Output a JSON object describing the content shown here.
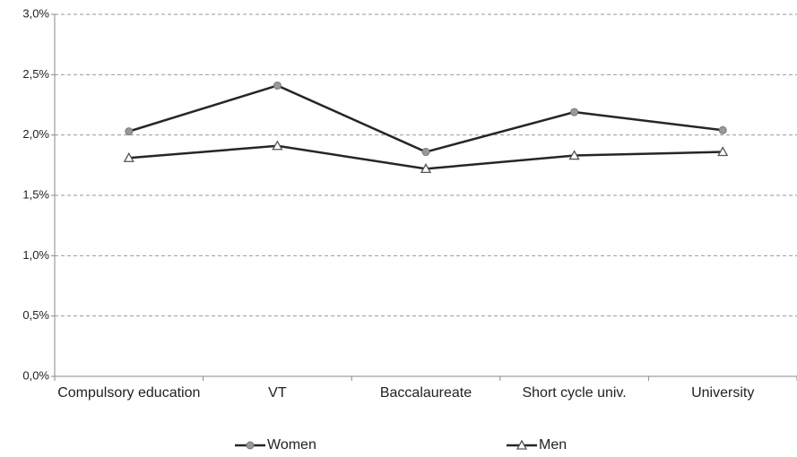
{
  "chart_data": {
    "type": "line",
    "categories": [
      "Compulsory education",
      "VT",
      "Baccalaureate",
      "Short cycle univ.",
      "University"
    ],
    "series": [
      {
        "name": "Women",
        "color": "#262626",
        "marker": "circle",
        "values": [
          2.03,
          2.41,
          1.86,
          2.19,
          2.04
        ]
      },
      {
        "name": "Men",
        "color": "#262626",
        "marker": "triangle",
        "values": [
          1.81,
          1.91,
          1.72,
          1.83,
          1.86
        ]
      }
    ],
    "ylim": [
      0,
      3
    ],
    "yticks": [
      {
        "value": 0,
        "label": "0,0%"
      },
      {
        "value": 0.5,
        "label": "0,5%"
      },
      {
        "value": 1,
        "label": "1,0%"
      },
      {
        "value": 1.5,
        "label": "1,5%"
      },
      {
        "value": 2,
        "label": "2,0%"
      },
      {
        "value": 2.5,
        "label": "2,5%"
      },
      {
        "value": 3,
        "label": "3,0%"
      }
    ],
    "grid": true
  }
}
